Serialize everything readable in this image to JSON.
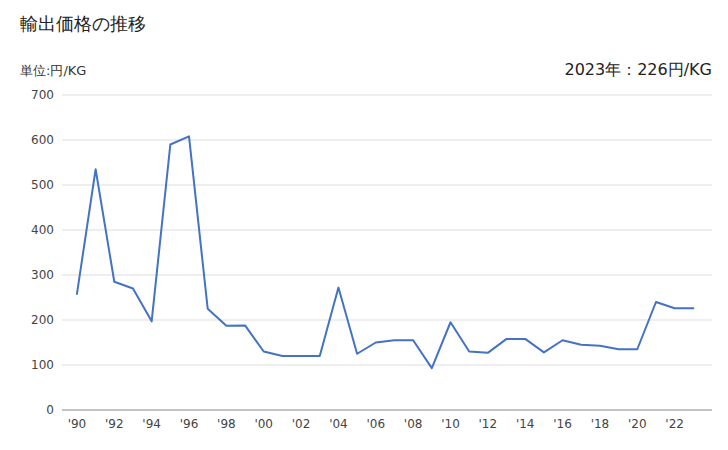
{
  "chart_data": {
    "type": "line",
    "title": "輸出価格の推移",
    "ylabel": "単位:円/KG",
    "annotation": "2023年：226円/KG",
    "x": [
      1990,
      1991,
      1992,
      1993,
      1994,
      1995,
      1996,
      1997,
      1998,
      1999,
      2000,
      2001,
      2002,
      2003,
      2004,
      2005,
      2006,
      2007,
      2008,
      2009,
      2010,
      2011,
      2012,
      2013,
      2014,
      2015,
      2016,
      2017,
      2018,
      2019,
      2020,
      2021,
      2022,
      2023
    ],
    "values": [
      258,
      535,
      285,
      270,
      197,
      590,
      608,
      225,
      187,
      188,
      130,
      120,
      120,
      120,
      272,
      125,
      150,
      155,
      155,
      93,
      195,
      130,
      127,
      158,
      158,
      128,
      155,
      145,
      143,
      135,
      135,
      240,
      226,
      226
    ],
    "color": "#4472C4",
    "xlim": [
      1989.2,
      2024.0
    ],
    "xticks": [
      {
        "value": 1990,
        "label": "'90"
      },
      {
        "value": 1992,
        "label": "'92"
      },
      {
        "value": 1994,
        "label": "'94"
      },
      {
        "value": 1996,
        "label": "'96"
      },
      {
        "value": 1998,
        "label": "'98"
      },
      {
        "value": 2000,
        "label": "'00"
      },
      {
        "value": 2002,
        "label": "'02"
      },
      {
        "value": 2004,
        "label": "'04"
      },
      {
        "value": 2006,
        "label": "'06"
      },
      {
        "value": 2008,
        "label": "'08"
      },
      {
        "value": 2010,
        "label": "'10"
      },
      {
        "value": 2012,
        "label": "'12"
      },
      {
        "value": 2014,
        "label": "'14"
      },
      {
        "value": 2016,
        "label": "'16"
      },
      {
        "value": 2018,
        "label": "'18"
      },
      {
        "value": 2020,
        "label": "'20"
      },
      {
        "value": 2022,
        "label": "'22"
      }
    ],
    "ylim": [
      0,
      700
    ],
    "yticks": [
      0,
      100,
      200,
      300,
      400,
      500,
      600,
      700
    ],
    "grid": true
  }
}
